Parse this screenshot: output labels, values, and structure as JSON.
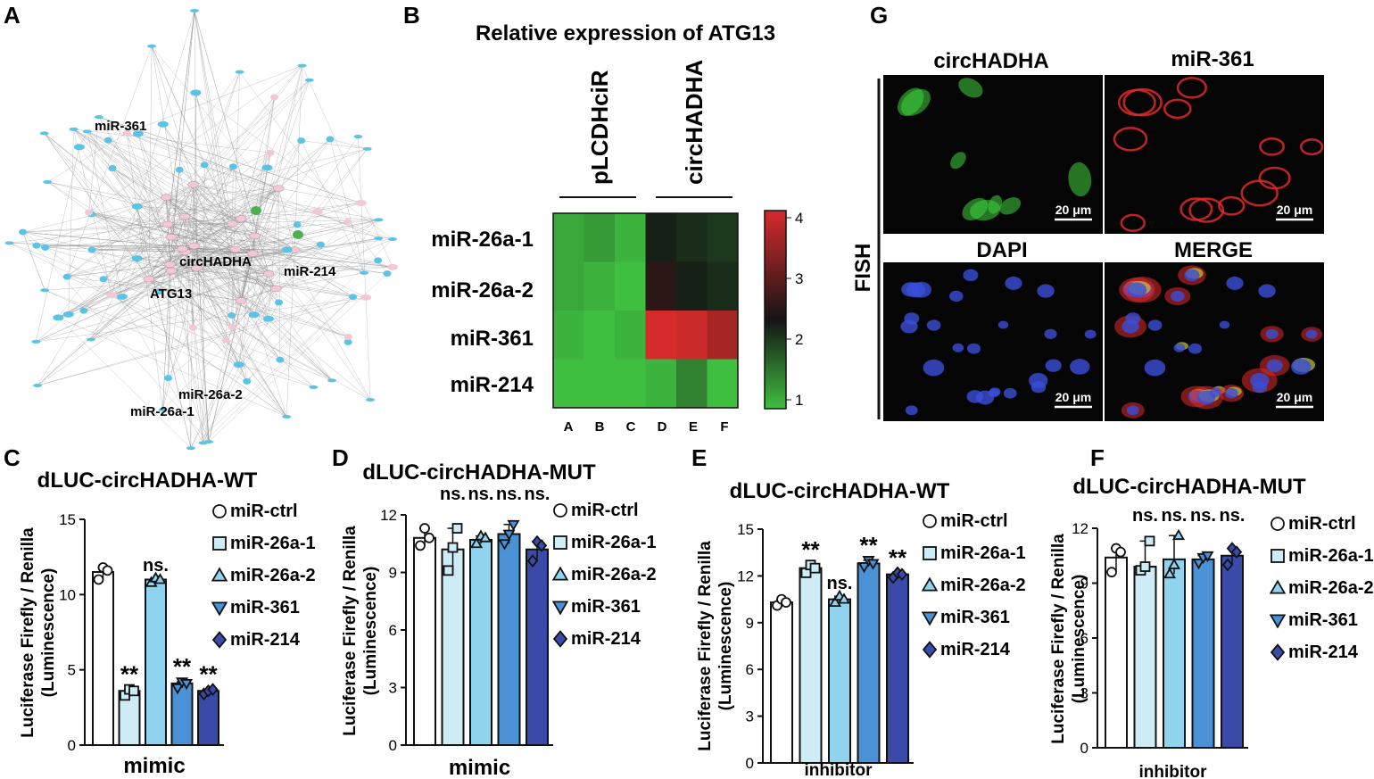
{
  "panel_labels": {
    "a": "A",
    "b": "B",
    "c": "C",
    "d": "D",
    "e": "E",
    "f": "F",
    "g": "G"
  },
  "network": {
    "labels": {
      "mir361": "miR-361",
      "circ": "circHADHA",
      "mir214": "miR-214",
      "atg13": "ATG13",
      "mir26a2": "miR-26a-2",
      "mir26a1": "miR-26a-1"
    },
    "colors": {
      "hub": "#f2c8d4",
      "target": "#5bc4e6",
      "accent": "#4caf50",
      "edge": "#8c8c8c"
    }
  },
  "heatmap": {
    "title": "Relative expression of ATG13",
    "groups": [
      "pLCDHciR",
      "circHADHA"
    ],
    "rows": [
      "miR-26a-1",
      "miR-26a-2",
      "miR-361",
      "miR-214"
    ],
    "cols": [
      "A",
      "B",
      "C",
      "D",
      "E",
      "F"
    ],
    "values": [
      [
        1.2,
        1.3,
        1.1,
        2.3,
        2.2,
        2.1
      ],
      [
        1.2,
        1.1,
        1.0,
        2.6,
        2.3,
        2.2
      ],
      [
        1.1,
        1.0,
        1.1,
        4.0,
        3.9,
        3.6
      ],
      [
        1.0,
        1.0,
        1.0,
        1.1,
        1.5,
        1.0
      ]
    ],
    "scale_ticks": [
      "4",
      "3",
      "2",
      "1"
    ],
    "colors": {
      "low": "#3fbf3f",
      "mid": "#141414",
      "high": "#d62b2b"
    }
  },
  "fish": {
    "side_label": "FISH",
    "channels": [
      "circHADHA",
      "miR-361",
      "DAPI",
      "MERGE"
    ],
    "scale_bar": "20 μm",
    "colors": {
      "green": "#3fd13f",
      "red": "#e02a2a",
      "blue": "#3a4fd8"
    }
  },
  "legend_items": [
    "miR-ctrl",
    "miR-26a-1",
    "miR-26a-2",
    "miR-361",
    "miR-214"
  ],
  "bar_colors": [
    "#ffffff",
    "#cdecf5",
    "#8fd3ee",
    "#4a91d6",
    "#3a4aa8"
  ],
  "chart_data": [
    {
      "type": "bar",
      "panel": "C",
      "title": "dLUC-circHADHA-WT",
      "xlabel": "mimic",
      "ylabel": "Luciferase Firefly / Renilla (Luminescence)",
      "ylim": [
        0,
        15
      ],
      "yticks": [
        "0",
        "5",
        "10",
        "15"
      ],
      "categories": [
        "miR-ctrl",
        "miR-26a-1",
        "miR-26a-2",
        "miR-361",
        "miR-214"
      ],
      "values": [
        11.5,
        3.6,
        11.0,
        4.1,
        3.6
      ],
      "points": [
        [
          11.0,
          11.8,
          11.6
        ],
        [
          3.3,
          3.7,
          3.6
        ],
        [
          10.8,
          11.1,
          11.0
        ],
        [
          3.8,
          4.2,
          4.1
        ],
        [
          3.4,
          3.6,
          3.7
        ]
      ],
      "annotations": [
        "",
        "**",
        "ns.",
        "**",
        "**"
      ]
    },
    {
      "type": "bar",
      "panel": "D",
      "title": "dLUC-circHADHA-MUT",
      "xlabel": "mimic",
      "ylabel": "Luciferase Firefly / Renilla (Luminescence)",
      "ylim": [
        0,
        12
      ],
      "yticks": [
        "0",
        "3",
        "6",
        "9",
        "12"
      ],
      "categories": [
        "miR-ctrl",
        "miR-26a-1",
        "miR-26a-2",
        "miR-361",
        "miR-214"
      ],
      "values": [
        10.8,
        10.2,
        10.7,
        11.0,
        10.2
      ],
      "points": [
        [
          10.4,
          11.3,
          10.8
        ],
        [
          9.1,
          10.3,
          11.3
        ],
        [
          10.5,
          10.9,
          10.8
        ],
        [
          10.5,
          11.0,
          11.5
        ],
        [
          9.6,
          10.6,
          10.4
        ]
      ],
      "annotations": [
        "",
        "ns.",
        "ns.",
        "ns.",
        "ns."
      ]
    },
    {
      "type": "bar",
      "panel": "E",
      "title": "dLUC-circHADHA-WT",
      "xlabel": "inhibitor",
      "ylabel": "Luciferase Firefly / Renilla (Luminescence)",
      "ylim": [
        0,
        15
      ],
      "yticks": [
        "0",
        "3",
        "6",
        "9",
        "12",
        "15"
      ],
      "categories": [
        "miR-ctrl",
        "miR-26a-1",
        "miR-26a-2",
        "miR-361",
        "miR-214"
      ],
      "values": [
        10.3,
        12.5,
        10.5,
        12.8,
        12.1
      ],
      "points": [
        [
          10.1,
          10.5,
          10.3
        ],
        [
          12.2,
          12.7,
          12.5
        ],
        [
          10.3,
          10.7,
          10.5
        ],
        [
          12.6,
          13.0,
          12.8
        ],
        [
          11.9,
          12.2,
          12.1
        ]
      ],
      "annotations": [
        "",
        "**",
        "ns.",
        "**",
        "**"
      ]
    },
    {
      "type": "bar",
      "panel": "F",
      "title": "dLUC-circHADHA-MUT",
      "xlabel": "inhibitor",
      "ylabel": "Luciferase Firefly / Renilla (Luminescence)",
      "ylim": [
        0,
        12
      ],
      "yticks": [
        "0",
        "3",
        "6",
        "9",
        "12"
      ],
      "categories": [
        "miR-ctrl",
        "miR-26a-1",
        "miR-26a-2",
        "miR-361",
        "miR-214"
      ],
      "values": [
        10.4,
        9.9,
        10.3,
        10.3,
        10.5
      ],
      "points": [
        [
          9.6,
          10.9,
          10.7
        ],
        [
          9.7,
          9.9,
          11.3
        ],
        [
          9.5,
          10.0,
          11.6
        ],
        [
          10.1,
          10.4,
          10.5
        ],
        [
          10.0,
          10.9,
          10.7
        ]
      ],
      "annotations": [
        "",
        "ns.",
        "ns.",
        "ns.",
        "ns."
      ]
    }
  ]
}
